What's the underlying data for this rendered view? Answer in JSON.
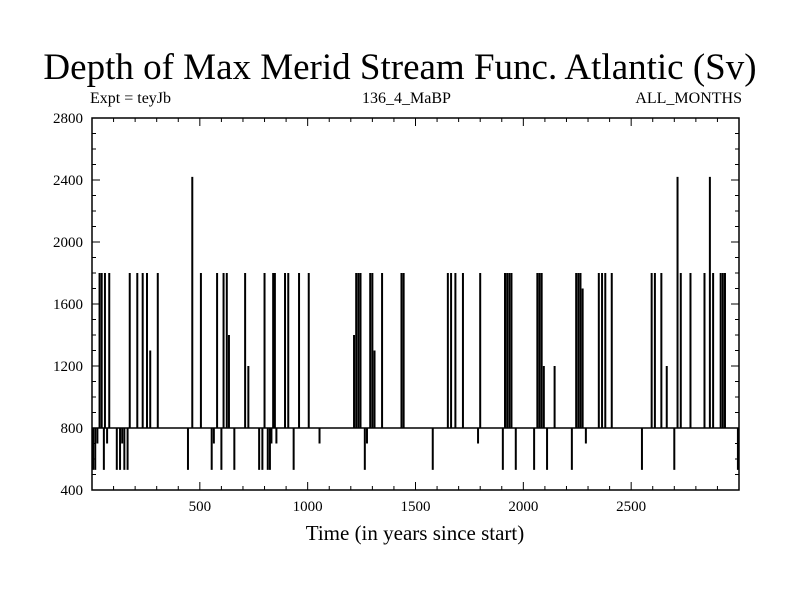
{
  "chart_data": {
    "type": "bar",
    "title": "Depth of Max Merid Stream Func. Atlantic (Sv)",
    "subtitle_left": "Expt = teyJb",
    "subtitle_center": "136_4_MaBP",
    "subtitle_right": "ALL_MONTHS",
    "xlabel": "Time (in years since start)",
    "ylabel": "",
    "xlim": [
      0,
      3000
    ],
    "ylim": [
      400,
      2800
    ],
    "baseline": 800,
    "xticks": [
      500,
      1000,
      1500,
      2000,
      2500
    ],
    "yticks": [
      400,
      800,
      1200,
      1600,
      2000,
      2400,
      2800
    ],
    "x_minor_step": 100,
    "y_minor_step": 100,
    "grid": false,
    "bars": [
      {
        "x": 5,
        "y": 530
      },
      {
        "x": 15,
        "y": 530
      },
      {
        "x": 25,
        "y": 700
      },
      {
        "x": 35,
        "y": 1800
      },
      {
        "x": 45,
        "y": 1800
      },
      {
        "x": 55,
        "y": 530
      },
      {
        "x": 60,
        "y": 1800
      },
      {
        "x": 70,
        "y": 700
      },
      {
        "x": 80,
        "y": 1800
      },
      {
        "x": 115,
        "y": 530
      },
      {
        "x": 130,
        "y": 530
      },
      {
        "x": 140,
        "y": 700
      },
      {
        "x": 150,
        "y": 530
      },
      {
        "x": 165,
        "y": 530
      },
      {
        "x": 175,
        "y": 1800
      },
      {
        "x": 210,
        "y": 1800
      },
      {
        "x": 235,
        "y": 1800
      },
      {
        "x": 255,
        "y": 1800
      },
      {
        "x": 270,
        "y": 1300
      },
      {
        "x": 305,
        "y": 1800
      },
      {
        "x": 445,
        "y": 530
      },
      {
        "x": 465,
        "y": 2420
      },
      {
        "x": 505,
        "y": 1800
      },
      {
        "x": 555,
        "y": 530
      },
      {
        "x": 565,
        "y": 700
      },
      {
        "x": 580,
        "y": 1800
      },
      {
        "x": 600,
        "y": 530
      },
      {
        "x": 610,
        "y": 1800
      },
      {
        "x": 625,
        "y": 1800
      },
      {
        "x": 635,
        "y": 1400
      },
      {
        "x": 660,
        "y": 530
      },
      {
        "x": 710,
        "y": 1800
      },
      {
        "x": 725,
        "y": 1200
      },
      {
        "x": 775,
        "y": 530
      },
      {
        "x": 790,
        "y": 530
      },
      {
        "x": 800,
        "y": 1800
      },
      {
        "x": 815,
        "y": 530
      },
      {
        "x": 825,
        "y": 530
      },
      {
        "x": 832,
        "y": 700
      },
      {
        "x": 840,
        "y": 1800
      },
      {
        "x": 848,
        "y": 1800
      },
      {
        "x": 855,
        "y": 700
      },
      {
        "x": 895,
        "y": 1800
      },
      {
        "x": 910,
        "y": 1800
      },
      {
        "x": 935,
        "y": 530
      },
      {
        "x": 960,
        "y": 1800
      },
      {
        "x": 1005,
        "y": 1800
      },
      {
        "x": 1055,
        "y": 700
      },
      {
        "x": 1215,
        "y": 1400
      },
      {
        "x": 1225,
        "y": 1800
      },
      {
        "x": 1235,
        "y": 1800
      },
      {
        "x": 1245,
        "y": 1800
      },
      {
        "x": 1265,
        "y": 530
      },
      {
        "x": 1275,
        "y": 700
      },
      {
        "x": 1290,
        "y": 1800
      },
      {
        "x": 1300,
        "y": 1800
      },
      {
        "x": 1310,
        "y": 1300
      },
      {
        "x": 1345,
        "y": 1800
      },
      {
        "x": 1435,
        "y": 1800
      },
      {
        "x": 1445,
        "y": 1800
      },
      {
        "x": 1580,
        "y": 530
      },
      {
        "x": 1650,
        "y": 1800
      },
      {
        "x": 1665,
        "y": 1800
      },
      {
        "x": 1685,
        "y": 1800
      },
      {
        "x": 1720,
        "y": 1800
      },
      {
        "x": 1790,
        "y": 700
      },
      {
        "x": 1800,
        "y": 1800
      },
      {
        "x": 1905,
        "y": 530
      },
      {
        "x": 1915,
        "y": 1800
      },
      {
        "x": 1925,
        "y": 1800
      },
      {
        "x": 1935,
        "y": 1800
      },
      {
        "x": 1945,
        "y": 1800
      },
      {
        "x": 1965,
        "y": 530
      },
      {
        "x": 2050,
        "y": 530
      },
      {
        "x": 2065,
        "y": 1800
      },
      {
        "x": 2075,
        "y": 1800
      },
      {
        "x": 2085,
        "y": 1800
      },
      {
        "x": 2095,
        "y": 1200
      },
      {
        "x": 2110,
        "y": 530
      },
      {
        "x": 2145,
        "y": 1200
      },
      {
        "x": 2225,
        "y": 530
      },
      {
        "x": 2245,
        "y": 1800
      },
      {
        "x": 2255,
        "y": 1800
      },
      {
        "x": 2265,
        "y": 1800
      },
      {
        "x": 2275,
        "y": 1700
      },
      {
        "x": 2290,
        "y": 700
      },
      {
        "x": 2350,
        "y": 1800
      },
      {
        "x": 2365,
        "y": 1800
      },
      {
        "x": 2380,
        "y": 1800
      },
      {
        "x": 2410,
        "y": 1800
      },
      {
        "x": 2550,
        "y": 530
      },
      {
        "x": 2595,
        "y": 1800
      },
      {
        "x": 2610,
        "y": 1800
      },
      {
        "x": 2640,
        "y": 1800
      },
      {
        "x": 2665,
        "y": 1200
      },
      {
        "x": 2700,
        "y": 530
      },
      {
        "x": 2715,
        "y": 2420
      },
      {
        "x": 2730,
        "y": 1800
      },
      {
        "x": 2775,
        "y": 1800
      },
      {
        "x": 2840,
        "y": 1800
      },
      {
        "x": 2865,
        "y": 2420
      },
      {
        "x": 2880,
        "y": 1800
      },
      {
        "x": 2915,
        "y": 1800
      },
      {
        "x": 2925,
        "y": 1800
      },
      {
        "x": 2935,
        "y": 1800
      },
      {
        "x": 2995,
        "y": 530
      }
    ]
  }
}
